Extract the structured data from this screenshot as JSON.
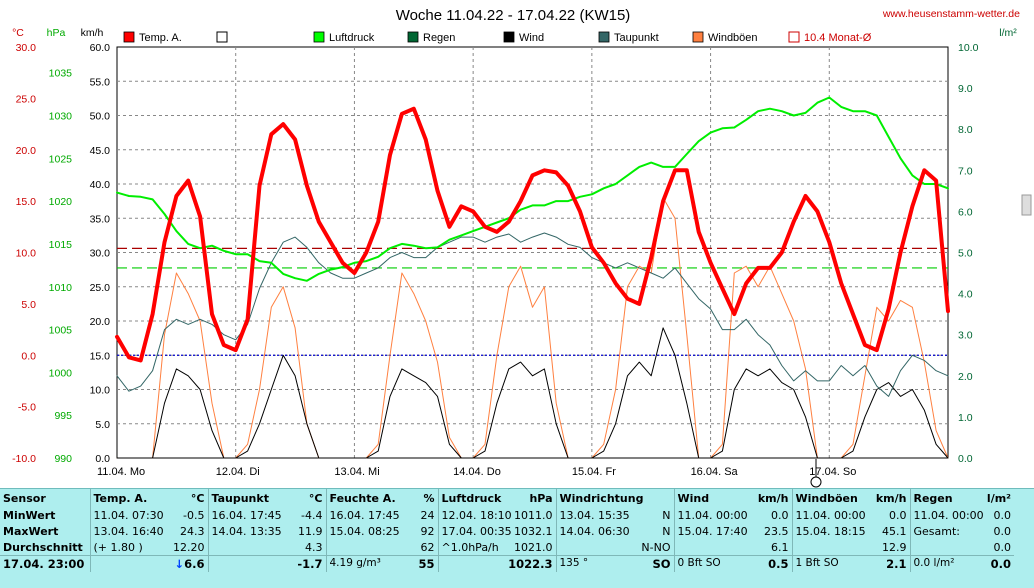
{
  "chart_data": {
    "type": "line",
    "title": "Woche 11.04.22 - 17.04.22 (KW15)",
    "watermark": "www.heusenstamm-wetter.de",
    "axes": {
      "temp": {
        "unit": "°C",
        "ticks": [
          "30.0",
          "25.0",
          "20.0",
          "15.0",
          "10.0",
          "5.0",
          "0.0",
          "-5.0",
          "-10.0"
        ],
        "range": [
          -10,
          30
        ]
      },
      "pressure": {
        "unit": "hPa",
        "ticks": [
          "1035",
          "1030",
          "1025",
          "1020",
          "1015",
          "1010",
          "1005",
          "1000",
          "995",
          "990"
        ],
        "range": [
          990,
          1038
        ]
      },
      "wind": {
        "unit": "km/h",
        "ticks": [
          "60.0",
          "55.0",
          "50.0",
          "45.0",
          "40.0",
          "35.0",
          "30.0",
          "25.0",
          "20.0",
          "15.0",
          "10.0",
          "5.0",
          "0.0"
        ],
        "range": [
          0,
          60
        ]
      },
      "rain": {
        "unit": "l/m²",
        "ticks": [
          "10.0",
          "9.0",
          "8.0",
          "7.0",
          "6.0",
          "5.0",
          "4.0",
          "3.0",
          "2.0",
          "1.0",
          "0.0"
        ],
        "range": [
          0,
          10
        ]
      }
    },
    "day_labels": [
      "11.04. Mo",
      "12.04. Di",
      "13.04. Mi",
      "14.04. Do",
      "15.04. Fr",
      "16.04. Sa",
      "17.04. So"
    ],
    "legend": [
      {
        "name": "Temp. A.",
        "color": "#ff0000",
        "kind": "fill"
      },
      {
        "name": "",
        "color": "#ffffff",
        "kind": "box"
      },
      {
        "name": "Luftdruck",
        "color": "#00ff00",
        "kind": "fill"
      },
      {
        "name": "Regen",
        "color": "#006633",
        "kind": "fill"
      },
      {
        "name": "Wind",
        "color": "#000000",
        "kind": "fill"
      },
      {
        "name": "Taupunkt",
        "color": "#336666",
        "kind": "fill"
      },
      {
        "name": "Windböen",
        "color": "#ff8040",
        "kind": "fill"
      },
      {
        "name": "10.4 Monat-Ø",
        "color": "#cc0000",
        "kind": "box"
      }
    ],
    "reference_lines": {
      "temp_month_avg": 10.4,
      "pressure_avg": 1012.2,
      "freezing": 0.0
    },
    "x_days": [
      0,
      0.1,
      0.2,
      0.3,
      0.4,
      0.5,
      0.6,
      0.7,
      0.8,
      0.9,
      1.0,
      1.1,
      1.2,
      1.3,
      1.4,
      1.5,
      1.6,
      1.7,
      1.8,
      1.9,
      2.0,
      2.1,
      2.2,
      2.3,
      2.4,
      2.5,
      2.6,
      2.7,
      2.8,
      2.9,
      3.0,
      3.1,
      3.2,
      3.3,
      3.4,
      3.5,
      3.6,
      3.7,
      3.8,
      3.9,
      4.0,
      4.1,
      4.2,
      4.3,
      4.4,
      4.5,
      4.6,
      4.7,
      4.8,
      4.9,
      5.0,
      5.1,
      5.2,
      5.3,
      5.4,
      5.5,
      5.6,
      5.7,
      5.8,
      5.9,
      6.0,
      6.1,
      6.2,
      6.3,
      6.4,
      6.5,
      6.6,
      6.7,
      6.8,
      6.9,
      7.0
    ],
    "series": [
      {
        "name": "Temp. A.",
        "axis": "temp",
        "color": "#ff0000",
        "width": 4,
        "values": [
          1.8,
          -0.2,
          -0.5,
          4.0,
          11.0,
          15.5,
          17.0,
          13.5,
          4.0,
          1.0,
          0.5,
          3.5,
          16.5,
          21.5,
          22.5,
          21.0,
          16.5,
          13.0,
          11.0,
          9.0,
          8.0,
          10.0,
          13.0,
          19.5,
          23.5,
          24.0,
          21.0,
          16.0,
          12.5,
          14.5,
          14.0,
          12.5,
          12.0,
          13.0,
          15.0,
          17.5,
          18.0,
          17.8,
          16.5,
          14.0,
          10.5,
          9.0,
          7.0,
          5.5,
          5.0,
          9.5,
          15.0,
          18.0,
          18.0,
          12.0,
          9.0,
          6.5,
          4.0,
          7.0,
          8.5,
          8.5,
          10.0,
          13.0,
          15.5,
          14.0,
          11.0,
          7.0,
          4.0,
          1.0,
          0.5,
          4.5,
          10.0,
          14.5,
          18.0,
          17.0,
          4.3
        ]
      },
      {
        "name": "Luftdruck",
        "axis": "pressure",
        "color": "#00ee00",
        "width": 2,
        "values": [
          1021.0,
          1020.6,
          1020.5,
          1020.2,
          1018.5,
          1016.5,
          1015.0,
          1014.5,
          1014.8,
          1014.2,
          1013.8,
          1013.8,
          1013.0,
          1012.8,
          1011.5,
          1011.0,
          1010.7,
          1011.5,
          1012.0,
          1012.3,
          1012.8,
          1013.0,
          1013.5,
          1014.5,
          1015.0,
          1014.8,
          1014.5,
          1014.6,
          1015.5,
          1016.0,
          1016.5,
          1017.0,
          1017.5,
          1018.0,
          1019.0,
          1019.5,
          1019.5,
          1020.0,
          1020.0,
          1020.5,
          1020.8,
          1021.5,
          1022.0,
          1023.0,
          1024.0,
          1024.5,
          1024.0,
          1024.0,
          1025.5,
          1027.0,
          1028.0,
          1028.5,
          1028.6,
          1029.5,
          1030.5,
          1030.8,
          1030.5,
          1030.0,
          1030.3,
          1031.5,
          1032.1,
          1031.0,
          1030.5,
          1030.5,
          1030.0,
          1027.5,
          1025.0,
          1023.0,
          1022.0,
          1022.0,
          1021.5
        ]
      },
      {
        "name": "Taupunkt",
        "axis": "temp",
        "color": "#336666",
        "width": 1,
        "values": [
          -2.0,
          -3.5,
          -3.0,
          -1.5,
          2.5,
          3.5,
          3.0,
          3.5,
          3.0,
          2.0,
          1.5,
          3.0,
          6.5,
          9.0,
          11.0,
          11.5,
          10.5,
          9.0,
          8.0,
          7.5,
          7.5,
          8.0,
          8.5,
          9.5,
          10.0,
          9.5,
          9.5,
          10.5,
          11.0,
          11.5,
          11.5,
          11.0,
          11.5,
          11.8,
          11.0,
          11.5,
          11.9,
          11.5,
          10.8,
          10.5,
          9.5,
          9.0,
          8.5,
          9.0,
          8.5,
          8.0,
          7.5,
          8.5,
          7.0,
          5.5,
          4.5,
          2.5,
          2.5,
          3.5,
          2.0,
          1.0,
          -1.0,
          -2.5,
          -1.5,
          -2.5,
          -2.5,
          -1.0,
          -2.0,
          -1.0,
          -3.0,
          -4.0,
          -1.5,
          0.0,
          -0.5,
          -1.5,
          -2.0
        ]
      },
      {
        "name": "Windböen",
        "axis": "wind",
        "color": "#ff8040",
        "width": 1,
        "values": [
          0,
          0,
          0,
          0,
          18,
          27,
          24,
          20,
          8,
          0,
          0,
          2,
          10,
          22,
          25,
          19,
          5,
          0,
          0,
          0,
          0,
          0,
          2,
          15,
          27,
          24,
          20,
          14,
          3,
          0,
          0,
          2,
          15,
          25,
          28,
          22,
          25,
          8,
          0,
          0,
          0,
          2,
          10,
          25,
          28,
          27,
          38,
          35,
          18,
          0,
          0,
          2,
          27,
          28,
          25,
          28,
          24,
          20,
          13,
          0,
          0,
          0,
          2,
          12,
          22,
          20,
          23,
          22,
          14,
          4,
          0
        ]
      },
      {
        "name": "Wind",
        "axis": "wind",
        "color": "#000000",
        "width": 1,
        "values": [
          0,
          0,
          0,
          0,
          8,
          13,
          12,
          10,
          4,
          0,
          0,
          1,
          5,
          10,
          15,
          12,
          5,
          0,
          0,
          0,
          0,
          0,
          1,
          9,
          13,
          12,
          11,
          9,
          2,
          0,
          0,
          1,
          8,
          13,
          14,
          12,
          13,
          5,
          0,
          0,
          0,
          1,
          5,
          12,
          14,
          12,
          19,
          15,
          8,
          0,
          0,
          1,
          10,
          13,
          12,
          13,
          11,
          10,
          6,
          0,
          0,
          0,
          1,
          6,
          10,
          11,
          9,
          10,
          7,
          2,
          0
        ]
      }
    ]
  },
  "stats": {
    "columns": [
      {
        "title": "Sensor",
        "unit": ""
      },
      {
        "title": "Temp. A.",
        "unit": "°C"
      },
      {
        "title": "Taupunkt",
        "unit": "°C"
      },
      {
        "title": "Feuchte A.",
        "unit": "%"
      },
      {
        "title": "Luftdruck",
        "unit": "hPa"
      },
      {
        "title": "Windrichtung",
        "unit": ""
      },
      {
        "title": "Wind",
        "unit": "km/h"
      },
      {
        "title": "Windböen",
        "unit": "km/h"
      },
      {
        "title": "Regen",
        "unit": "l/m²"
      }
    ],
    "rows": [
      {
        "label": "MinWert",
        "cells": [
          [
            "11.04.  07:30",
            "-0.5"
          ],
          [
            "16.04.  17:45",
            "-4.4"
          ],
          [
            "16.04.  17:45",
            "24"
          ],
          [
            "12.04.  18:10",
            "1011.0"
          ],
          [
            "13.04.  15:35",
            "N"
          ],
          [
            "11.04.  00:00",
            "0.0"
          ],
          [
            "11.04.  00:00",
            "0.0"
          ],
          [
            "11.04.  00:00",
            "0.0"
          ]
        ]
      },
      {
        "label": "MaxWert",
        "cells": [
          [
            "13.04.  16:40",
            "24.3"
          ],
          [
            "14.04.  13:35",
            "11.9"
          ],
          [
            "15.04.  08:25",
            "92"
          ],
          [
            "17.04.  00:35",
            "1032.1"
          ],
          [
            "14.04.  06:30",
            "N"
          ],
          [
            "15.04.  17:40",
            "23.5"
          ],
          [
            "15.04.  18:15",
            "45.1"
          ],
          [
            "Gesamt:",
            "0.0"
          ]
        ]
      },
      {
        "label": "Durchschnitt",
        "cells": [
          [
            "(+ 1.80 )",
            "12.20"
          ],
          [
            "",
            "4.3"
          ],
          [
            "",
            "62"
          ],
          [
            "^1.0hPa/h",
            "1021.0"
          ],
          [
            "",
            "N-NO"
          ],
          [
            "",
            "6.1"
          ],
          [
            "",
            "12.9"
          ],
          [
            "",
            "0.0"
          ]
        ]
      }
    ],
    "current": {
      "label": "17.04.  23:00",
      "cells": [
        "6.6",
        "-1.7",
        "55",
        "1022.3",
        "SO",
        "0.5",
        "2.1",
        "0.0"
      ],
      "extra": [
        "",
        "",
        "4.19 g/m³",
        "",
        "135 °",
        "0 Bft SO",
        "1 Bft SO",
        "0.0 l/m²"
      ]
    }
  }
}
